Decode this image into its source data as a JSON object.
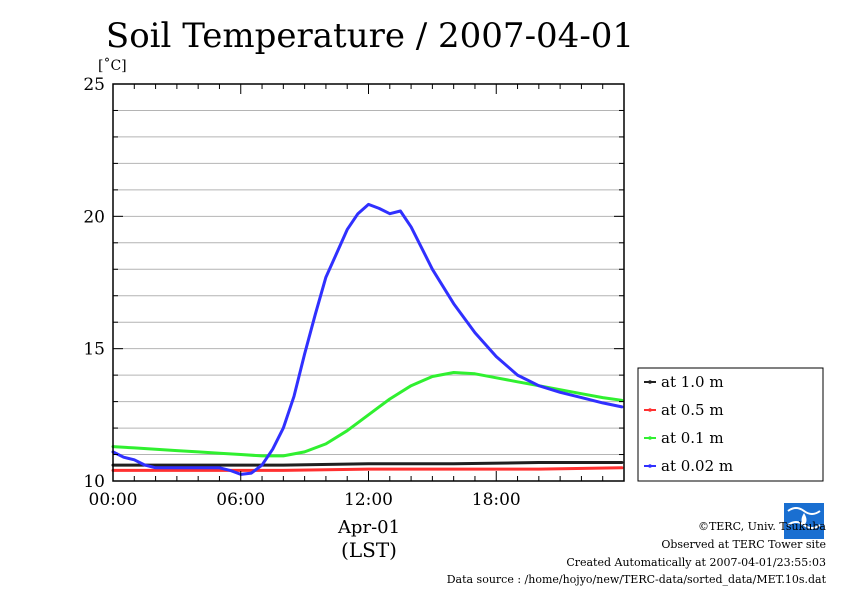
{
  "chart_data": {
    "type": "line",
    "title": "Soil Temperature / 2007-04-01",
    "ylabel": "[˚C]",
    "xlabel": "Apr-01",
    "xlabel2": "(LST)",
    "xlim": [
      0,
      24
    ],
    "ylim": [
      10,
      25
    ],
    "yticks": [
      10,
      15,
      20,
      25
    ],
    "xticks": [
      {
        "value": 0,
        "label": "00:00"
      },
      {
        "value": 6,
        "label": "06:00"
      },
      {
        "value": 12,
        "label": "12:00"
      },
      {
        "value": 18,
        "label": "18:00"
      }
    ],
    "grid": "horizontal",
    "legend_position": "right",
    "series": [
      {
        "name": "at 1.0 m",
        "color": "#202020",
        "x": [
          0,
          4,
          8,
          12,
          16,
          20,
          23.9
        ],
        "y": [
          10.6,
          10.6,
          10.6,
          10.65,
          10.65,
          10.7,
          10.7
        ]
      },
      {
        "name": "at 0.5 m",
        "color": "#ff3030",
        "x": [
          0,
          4,
          8,
          12,
          16,
          20,
          23.9
        ],
        "y": [
          10.4,
          10.4,
          10.4,
          10.45,
          10.45,
          10.45,
          10.5
        ]
      },
      {
        "name": "at 0.1 m",
        "color": "#30f030",
        "x": [
          0,
          1,
          2,
          3,
          4,
          5,
          6,
          7,
          8,
          9,
          10,
          11,
          12,
          13,
          14,
          15,
          16,
          17,
          18,
          19,
          20,
          21,
          22,
          23,
          23.9
        ],
        "y": [
          11.3,
          11.25,
          11.2,
          11.15,
          11.1,
          11.05,
          11.0,
          10.95,
          10.95,
          11.1,
          11.4,
          11.9,
          12.5,
          13.1,
          13.6,
          13.95,
          14.1,
          14.05,
          13.9,
          13.75,
          13.6,
          13.45,
          13.3,
          13.15,
          13.05
        ]
      },
      {
        "name": "at 0.02 m",
        "color": "#3030ff",
        "x": [
          0,
          0.5,
          1,
          1.5,
          2,
          3,
          4,
          5,
          5.5,
          6,
          6.5,
          7,
          7.5,
          8,
          8.5,
          9,
          9.5,
          10,
          10.5,
          11,
          11.5,
          12,
          12.5,
          13,
          13.5,
          14,
          15,
          16,
          17,
          18,
          19,
          20,
          21,
          22,
          23,
          23.9
        ],
        "y": [
          11.1,
          10.9,
          10.8,
          10.6,
          10.5,
          10.5,
          10.5,
          10.5,
          10.4,
          10.25,
          10.3,
          10.6,
          11.2,
          12.0,
          13.2,
          14.8,
          16.3,
          17.7,
          18.6,
          19.5,
          20.1,
          20.45,
          20.3,
          20.1,
          20.2,
          19.6,
          18.0,
          16.7,
          15.6,
          14.7,
          14.0,
          13.6,
          13.35,
          13.15,
          12.95,
          12.8
        ]
      }
    ]
  },
  "credits": {
    "copyright": "©TERC, Univ. Tsukuba",
    "observed": "Observed at TERC Tower site",
    "created": "Created Automatically at 2007-04-01/23:55:03",
    "source": "Data source : /home/hojyo/new/TERC-data/sorted_data/MET.10s.dat",
    "logo_text": "TERC"
  }
}
